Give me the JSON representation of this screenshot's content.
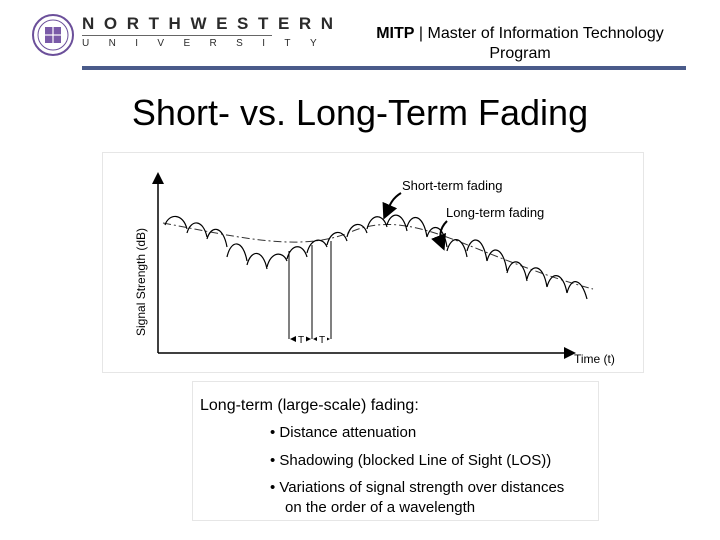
{
  "header": {
    "wordmark_top": "NORTHWESTERN",
    "wordmark_bottom": "UNIVERSITY",
    "program_prefix": "MITP",
    "program_separator": " | ",
    "program_name": "Master of Information Technology Program",
    "bar_color": "#4a5b8a"
  },
  "slide": {
    "title": "Short- vs. Long-Term Fading"
  },
  "diagram": {
    "y_axis_label": "Signal Strength (dB)",
    "x_axis_label": "Time (t)",
    "annotation_short": "Short-term fading",
    "annotation_long": "Long-term fading",
    "period_label_1": "T",
    "period_label_2": "T"
  },
  "text_box": {
    "heading": "Long-term (large-scale) fading:",
    "bullets": [
      "• Distance attenuation",
      "• Shadowing (blocked Line of Sight (LOS))",
      "• Variations of signal strength over distances",
      "on the order of a wavelength"
    ]
  },
  "icons": {
    "seal": "university-seal-icon"
  }
}
